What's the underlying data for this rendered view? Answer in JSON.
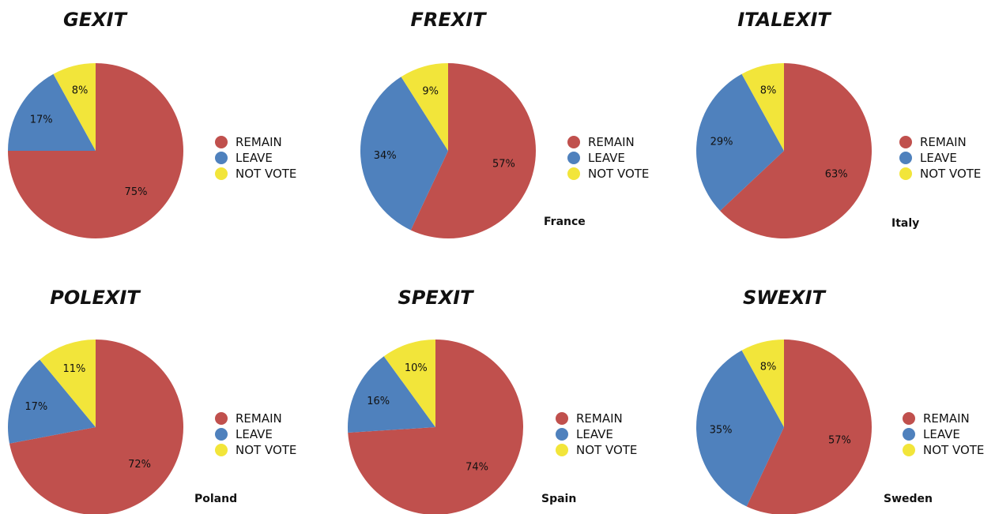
{
  "chart_data": [
    {
      "type": "pie",
      "title": "GEXIT",
      "country": "",
      "labels": [
        "REMAIN",
        "LEAVE",
        "NOT VOTE"
      ],
      "values": [
        75,
        17,
        8
      ],
      "value_labels": [
        "75%",
        "17%",
        "8%"
      ],
      "colors": [
        "#c0504d",
        "#4f81bd",
        "#f2e53a"
      ],
      "legend": "right"
    },
    {
      "type": "pie",
      "title": "FREXIT",
      "country": "France",
      "labels": [
        "REMAIN",
        "LEAVE",
        "NOT VOTE"
      ],
      "values": [
        57,
        34,
        9
      ],
      "value_labels": [
        "57%",
        "34%",
        "9%"
      ],
      "colors": [
        "#c0504d",
        "#4f81bd",
        "#f2e53a"
      ],
      "legend": "right"
    },
    {
      "type": "pie",
      "title": "ITALEXIT",
      "country": "Italy",
      "labels": [
        "REMAIN",
        "LEAVE",
        "NOT VOTE"
      ],
      "values": [
        63,
        29,
        8
      ],
      "value_labels": [
        "63%",
        "29%",
        "8%"
      ],
      "colors": [
        "#c0504d",
        "#4f81bd",
        "#f2e53a"
      ],
      "legend": "right"
    },
    {
      "type": "pie",
      "title": "POLEXIT",
      "country": "Poland",
      "labels": [
        "REMAIN",
        "LEAVE",
        "NOT VOTE"
      ],
      "values": [
        72,
        17,
        11
      ],
      "value_labels": [
        "72%",
        "17%",
        "11%"
      ],
      "colors": [
        "#c0504d",
        "#4f81bd",
        "#f2e53a"
      ],
      "legend": "right"
    },
    {
      "type": "pie",
      "title": "SPEXIT",
      "country": "Spain",
      "labels": [
        "REMAIN",
        "LEAVE",
        "NOT VOTE"
      ],
      "values": [
        74,
        16,
        10
      ],
      "value_labels": [
        "74%",
        "16%",
        "10%"
      ],
      "colors": [
        "#c0504d",
        "#4f81bd",
        "#f2e53a"
      ],
      "legend": "right"
    },
    {
      "type": "pie",
      "title": "SWEXIT",
      "country": "Sweden",
      "labels": [
        "REMAIN",
        "LEAVE",
        "NOT VOTE"
      ],
      "values": [
        57,
        35,
        8
      ],
      "value_labels": [
        "57%",
        "35%",
        "8%"
      ],
      "colors": [
        "#c0504d",
        "#4f81bd",
        "#f2e53a"
      ],
      "legend": "right"
    }
  ]
}
